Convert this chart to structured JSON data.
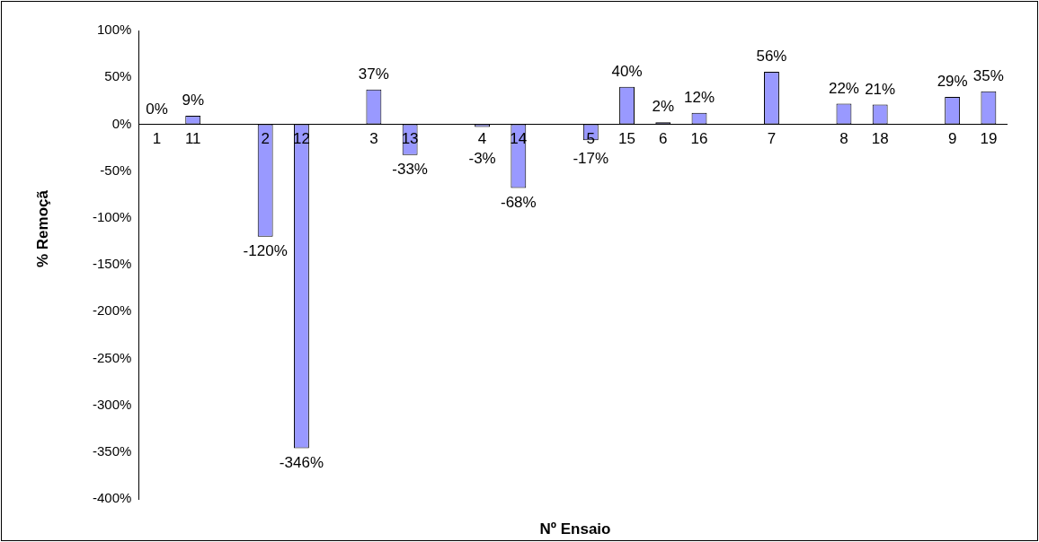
{
  "chart_data": {
    "type": "bar",
    "xlabel": "Nº Ensaio",
    "ylabel": "% Remoçã",
    "categories": [
      "1",
      "11",
      null,
      "2",
      "12",
      null,
      "3",
      "13",
      null,
      "4",
      "14",
      null,
      "5",
      "15",
      "6",
      "16",
      null,
      "7",
      null,
      "8",
      "18",
      null,
      "9",
      "19"
    ],
    "values": [
      0,
      9,
      null,
      -120,
      -346,
      null,
      37,
      -33,
      null,
      -3,
      -68,
      null,
      -17,
      40,
      2,
      12,
      null,
      56,
      null,
      22,
      21,
      null,
      29,
      35
    ],
    "value_labels": [
      "0%",
      "9%",
      null,
      "-120%",
      "-346%",
      null,
      "37%",
      "-33%",
      null,
      "-3%",
      "-68%",
      null,
      "-17%",
      "40%",
      "2%",
      "12%",
      null,
      "56%",
      null,
      "22%",
      "21%",
      null,
      "29%",
      "35%"
    ],
    "color": "#9999ff",
    "ylim": [
      -400,
      100
    ],
    "yticks": [
      {
        "value": -400,
        "label": "-400%"
      },
      {
        "value": -350,
        "label": "-350%"
      },
      {
        "value": -300,
        "label": "-300%"
      },
      {
        "value": -250,
        "label": "-250%"
      },
      {
        "value": -200,
        "label": "-200%"
      },
      {
        "value": -150,
        "label": "-150%"
      },
      {
        "value": -100,
        "label": "-100%"
      },
      {
        "value": -50,
        "label": "-50%"
      },
      {
        "value": 0,
        "label": "0%"
      },
      {
        "value": 50,
        "label": "50%"
      },
      {
        "value": 100,
        "label": "100%"
      }
    ],
    "grid": false,
    "legend": false
  }
}
